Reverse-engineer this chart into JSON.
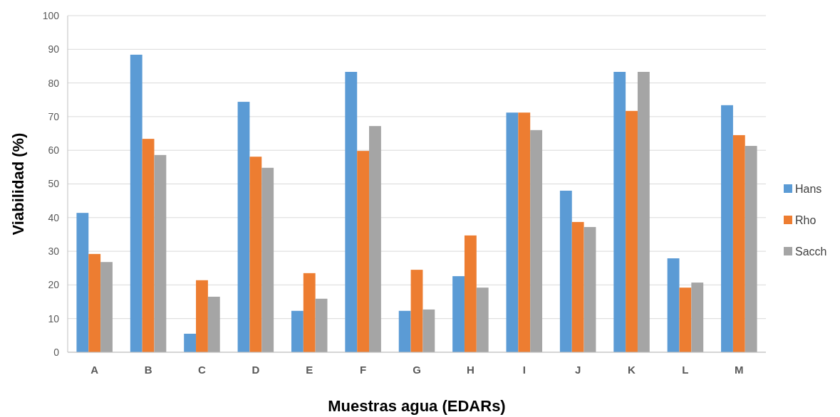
{
  "chart_data": {
    "type": "bar",
    "xlabel": "Muestras agua (EDARs)",
    "ylabel": "Viabilidad (%)",
    "categories": [
      "A",
      "B",
      "C",
      "D",
      "E",
      "F",
      "G",
      "H",
      "I",
      "J",
      "K",
      "L",
      "M"
    ],
    "series": [
      {
        "name": "Hans",
        "color": "#5b9bd5",
        "values": [
          41.4,
          88.4,
          5.5,
          74.4,
          12.3,
          83.3,
          12.3,
          22.6,
          71.2,
          48.0,
          83.3,
          27.9,
          73.4
        ]
      },
      {
        "name": "Rho",
        "color": "#ed7d31",
        "values": [
          29.2,
          63.4,
          21.4,
          58.1,
          23.5,
          59.8,
          24.5,
          34.7,
          71.2,
          38.7,
          71.7,
          19.2,
          64.5
        ]
      },
      {
        "name": "Sacch",
        "color": "#a5a5a5",
        "values": [
          26.8,
          58.6,
          16.5,
          54.8,
          15.9,
          67.2,
          12.7,
          19.2,
          66.0,
          37.2,
          83.3,
          20.7,
          61.3
        ]
      }
    ],
    "ylim": [
      0,
      100
    ],
    "yticks": [
      0,
      10,
      20,
      30,
      40,
      50,
      60,
      70,
      80,
      90,
      100
    ],
    "grid": "y",
    "legend": "right"
  }
}
